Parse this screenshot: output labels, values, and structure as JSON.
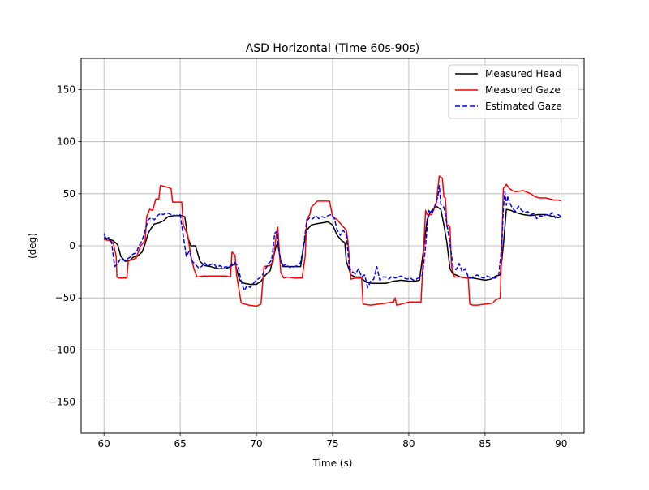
{
  "chart_data": {
    "type": "line",
    "title": "ASD Horizontal (Time 60s-90s)",
    "xlabel": "Time (s)",
    "ylabel": "(deg)",
    "xlim": [
      58.5,
      91.5
    ],
    "ylim": [
      -180,
      180
    ],
    "xticks": [
      60,
      65,
      70,
      75,
      80,
      85,
      90
    ],
    "yticks": [
      150,
      100,
      50,
      0,
      -50,
      -100,
      -150
    ],
    "xtick_labels": [
      "60",
      "65",
      "70",
      "75",
      "80",
      "85",
      "90"
    ],
    "ytick_labels": [
      "150",
      "100",
      "50",
      "0",
      "−50",
      "−100",
      "−150"
    ],
    "grid": true,
    "legend_position": "top-right",
    "series": [
      {
        "name": "Measured Head",
        "color": "#000000",
        "style": "solid",
        "x": [
          60.0,
          60.6,
          60.9,
          61.1,
          61.4,
          61.7,
          61.9,
          62.2,
          62.5,
          62.7,
          62.9,
          63.1,
          63.3,
          63.6,
          63.9,
          64.2,
          64.6,
          64.9,
          65.1,
          65.3,
          65.5,
          65.7,
          66.0,
          66.3,
          66.6,
          67.0,
          67.5,
          68.0,
          68.3,
          68.6,
          68.9,
          69.2,
          69.6,
          70.0,
          70.3,
          70.6,
          70.9,
          71.1,
          71.3,
          71.4,
          71.6,
          71.8,
          72.0,
          72.5,
          72.9,
          73.1,
          73.3,
          73.6,
          73.9,
          74.3,
          74.7,
          75.0,
          75.3,
          75.6,
          75.8,
          75.9,
          76.2,
          76.5,
          76.8,
          77.2,
          77.6,
          78.0,
          78.5,
          79.0,
          79.5,
          80.0,
          80.4,
          80.7,
          81.0,
          81.2,
          81.4,
          81.6,
          81.8,
          82.1,
          82.3,
          82.5,
          82.7,
          82.9,
          83.1,
          83.4,
          83.8,
          84.2,
          84.6,
          85.0,
          85.4,
          85.7,
          86.0,
          86.2,
          86.4,
          86.7,
          87.0,
          87.5,
          88.0,
          88.5,
          89.0,
          89.5,
          89.8,
          90.0
        ],
        "y": [
          8,
          5,
          1,
          -10,
          -15,
          -14,
          -11,
          -10,
          -6,
          2,
          12,
          17,
          21,
          22,
          24,
          28,
          29,
          29,
          29,
          28,
          8,
          0,
          0,
          -15,
          -19,
          -20,
          -22,
          -22,
          -20,
          -17,
          -33,
          -36,
          -37,
          -37,
          -34,
          -28,
          -24,
          -12,
          0,
          2,
          -15,
          -20,
          -20,
          -20,
          -20,
          0,
          15,
          20,
          21,
          22,
          23,
          20,
          10,
          5,
          3,
          -15,
          -28,
          -30,
          -30,
          -35,
          -36,
          -36,
          -36,
          -34,
          -33,
          -34,
          -34,
          -33,
          0,
          25,
          32,
          35,
          38,
          35,
          20,
          3,
          -22,
          -27,
          -28,
          -30,
          -31,
          -31,
          -32,
          -33,
          -32,
          -29,
          -28,
          0,
          35,
          34,
          32,
          30,
          29,
          30,
          30,
          28,
          27,
          28
        ]
      },
      {
        "name": "Measured Gaze",
        "color": "#ff0000",
        "style": "solid",
        "x": [
          60.0,
          60.4,
          60.6,
          60.8,
          60.85,
          61.0,
          61.3,
          61.5,
          61.6,
          61.9,
          62.1,
          62.4,
          62.7,
          62.8,
          63.0,
          63.2,
          63.4,
          63.6,
          63.7,
          64.0,
          64.4,
          64.5,
          65.0,
          65.1,
          65.2,
          65.5,
          65.7,
          65.9,
          66.1,
          66.5,
          67.0,
          67.5,
          68.0,
          68.3,
          68.4,
          68.6,
          68.7,
          69.0,
          69.5,
          70.0,
          70.3,
          70.5,
          70.9,
          71.1,
          71.3,
          71.4,
          71.6,
          71.8,
          72.0,
          72.5,
          73.0,
          73.2,
          73.3,
          73.5,
          73.6,
          74.0,
          74.4,
          74.8,
          75.0,
          75.3,
          75.6,
          75.9,
          76.0,
          76.2,
          76.5,
          76.8,
          76.9,
          77.0,
          77.5,
          78.0,
          78.5,
          79.0,
          79.1,
          79.2,
          79.5,
          80.0,
          80.5,
          80.8,
          81.0,
          81.1,
          81.2,
          81.5,
          81.8,
          81.9,
          82.0,
          82.2,
          82.3,
          82.4,
          82.5,
          82.6,
          82.7,
          82.8,
          83.0,
          83.2,
          83.5,
          83.9,
          84.0,
          84.2,
          84.5,
          85.0,
          85.5,
          85.7,
          86.0,
          86.1,
          86.2,
          86.4,
          86.6,
          86.8,
          87.0,
          87.5,
          88.0,
          88.3,
          88.6,
          89.0,
          89.5,
          89.8,
          90.0
        ],
        "y": [
          6,
          5,
          3,
          -10,
          -30,
          -31,
          -31,
          -31,
          -14,
          -13,
          -12,
          0,
          5,
          28,
          35,
          34,
          45,
          45,
          58,
          57,
          55,
          42,
          42,
          42,
          20,
          10,
          -10,
          -22,
          -30,
          -29,
          -29,
          -29,
          -29,
          -30,
          -6,
          -9,
          -28,
          -55,
          -57,
          -58,
          -56,
          -20,
          -19,
          -15,
          10,
          18,
          -26,
          -31,
          -30,
          -31,
          -31,
          -10,
          25,
          30,
          37,
          43,
          43,
          43,
          28,
          25,
          20,
          15,
          5,
          -32,
          -31,
          -31,
          -31,
          -56,
          -57,
          -56,
          -55,
          -54,
          -50,
          -57,
          -56,
          -54,
          -54,
          -54,
          5,
          34,
          30,
          30,
          40,
          55,
          67,
          65,
          47,
          46,
          18,
          20,
          18,
          -20,
          -30,
          -30,
          -30,
          -31,
          -56,
          -57,
          -57,
          -56,
          -55,
          -52,
          -50,
          0,
          55,
          59,
          55,
          53,
          52,
          53,
          50,
          47,
          46,
          46,
          44,
          44,
          43
        ]
      },
      {
        "name": "Estimated Gaze",
        "color": "#0000ff",
        "style": "dashed",
        "x": [
          60.0,
          60.15,
          60.3,
          60.5,
          60.7,
          60.9,
          61.1,
          61.3,
          61.5,
          61.7,
          61.9,
          62.1,
          62.3,
          62.5,
          62.7,
          62.9,
          63.1,
          63.3,
          63.5,
          63.7,
          63.9,
          64.1,
          64.4,
          64.7,
          65.0,
          65.2,
          65.4,
          65.6,
          65.8,
          66.0,
          66.2,
          66.4,
          66.6,
          66.8,
          67.0,
          67.2,
          67.4,
          67.6,
          67.8,
          68.0,
          68.2,
          68.4,
          68.6,
          68.8,
          69.0,
          69.2,
          69.4,
          69.6,
          69.8,
          70.0,
          70.2,
          70.4,
          70.6,
          70.8,
          71.0,
          71.2,
          71.35,
          71.5,
          71.7,
          71.9,
          72.1,
          72.3,
          72.5,
          72.7,
          72.9,
          73.1,
          73.3,
          73.5,
          73.7,
          73.9,
          74.1,
          74.3,
          74.5,
          74.7,
          74.9,
          75.1,
          75.3,
          75.5,
          75.7,
          75.9,
          76.1,
          76.3,
          76.5,
          76.7,
          76.9,
          77.1,
          77.3,
          77.5,
          77.7,
          77.9,
          78.1,
          78.3,
          78.5,
          78.7,
          78.9,
          79.1,
          79.3,
          79.5,
          79.7,
          79.9,
          80.1,
          80.3,
          80.5,
          80.7,
          80.9,
          81.1,
          81.3,
          81.5,
          81.7,
          81.9,
          82.0,
          82.1,
          82.3,
          82.5,
          82.7,
          82.9,
          83.1,
          83.3,
          83.5,
          83.7,
          83.9,
          84.1,
          84.3,
          84.5,
          84.7,
          84.9,
          85.1,
          85.3,
          85.5,
          85.7,
          85.9,
          86.1,
          86.2,
          86.3,
          86.4,
          86.5,
          86.6,
          86.8,
          87.0,
          87.2,
          87.4,
          87.6,
          87.8,
          88.0,
          88.2,
          88.4,
          88.6,
          88.8,
          89.0,
          89.2,
          89.4,
          89.6,
          89.8,
          90.0
        ],
        "y": [
          12,
          6,
          8,
          3,
          -20,
          -17,
          -12,
          -14,
          -13,
          -11,
          -8,
          -7,
          0,
          5,
          15,
          25,
          27,
          25,
          29,
          31,
          30,
          32,
          30,
          29,
          30,
          10,
          -10,
          -5,
          -15,
          -18,
          -21,
          -20,
          -16,
          -20,
          -18,
          -17,
          -21,
          -19,
          -21,
          -20,
          -21,
          -17,
          -16,
          -20,
          -34,
          -43,
          -38,
          -40,
          -36,
          -33,
          -31,
          -28,
          -22,
          -17,
          -14,
          12,
          14,
          -7,
          -20,
          -18,
          -20,
          -21,
          -20,
          -19,
          -16,
          0,
          24,
          27,
          26,
          29,
          26,
          28,
          27,
          29,
          30,
          27,
          15,
          10,
          15,
          10,
          -21,
          -25,
          -27,
          -22,
          -30,
          -28,
          -40,
          -34,
          -32,
          -20,
          -33,
          -30,
          -30,
          -32,
          -29,
          -31,
          -30,
          -29,
          -31,
          -32,
          -31,
          -33,
          -32,
          -30,
          -28,
          0,
          34,
          31,
          38,
          47,
          58,
          40,
          37,
          21,
          2,
          -20,
          -23,
          -17,
          -25,
          -22,
          -30,
          -31,
          -29,
          -28,
          -30,
          -31,
          -29,
          -30,
          -31,
          -31,
          -28,
          0,
          35,
          52,
          39,
          48,
          42,
          36,
          33,
          38,
          34,
          32,
          33,
          30,
          31,
          26,
          29,
          28,
          30,
          29,
          32,
          27,
          30,
          28
        ]
      }
    ]
  }
}
